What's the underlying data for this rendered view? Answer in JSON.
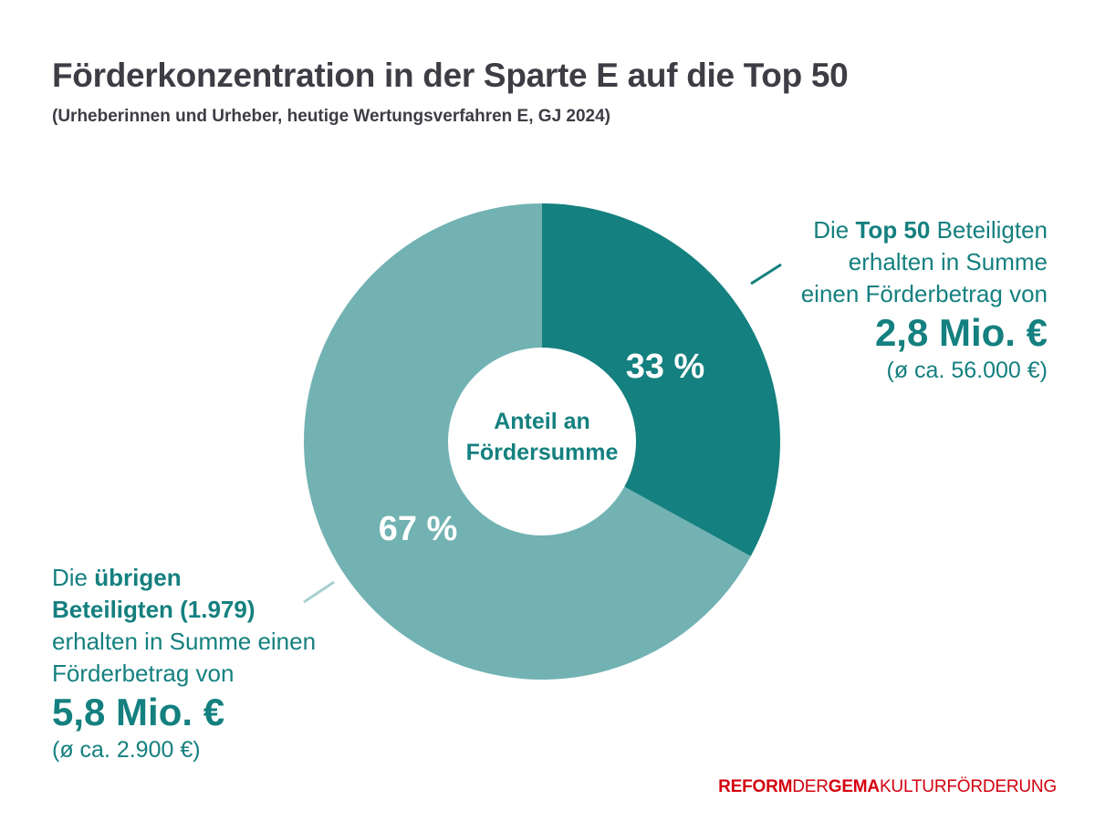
{
  "chart_data": {
    "type": "pie",
    "title": "Förderkonzentration in der Sparte E auf die Top 50",
    "subtitle": "(Urheberinnen und Urheber, heutige Wertungsverfahren E, GJ 2024)",
    "center_label": [
      "Anteil an",
      "Fördersumme"
    ],
    "slices": [
      {
        "name": "Top 50",
        "value": 33,
        "label": "33 %",
        "color": "#14807f"
      },
      {
        "name": "übrige Beteiligte",
        "value": 67,
        "label": "67 %",
        "color": "#72b2b3"
      }
    ]
  },
  "annotations": {
    "right": {
      "pre": "Die ",
      "bold": "Top 50",
      "post": " Beteiligten",
      "line2": "erhalten in Summe",
      "line3": "einen Förderbetrag von",
      "amount": "2,8 Mio. €",
      "avg": "(ø ca. 56.000 €)"
    },
    "left": {
      "pre": "Die ",
      "bold1": "übrigen",
      "bold2": "Beteiligten (1.979)",
      "line3": "erhalten in Summe einen",
      "line4": "Förderbetrag von",
      "amount": "5,8 Mio. €",
      "avg": "(ø ca. 2.900 €)"
    }
  },
  "logo": {
    "part1": "REFORM",
    "part2": "DER",
    "part3": "GEMA",
    "part4": "KULTURFÖRDERUNG"
  }
}
